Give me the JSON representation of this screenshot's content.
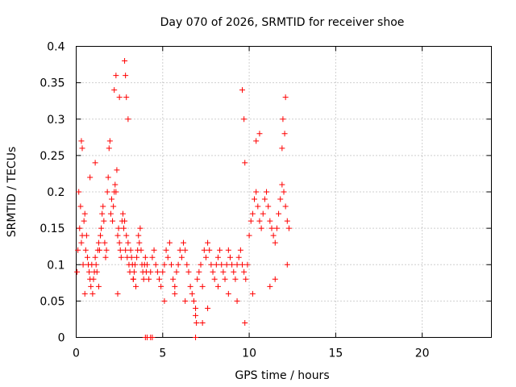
{
  "chart_data": {
    "type": "scatter",
    "title": "Day 070 of 2026, SRMTID for receiver shoe",
    "xlabel": "GPS time / hours",
    "ylabel": "SRMTID / TECUs",
    "xlim": [
      0,
      24
    ],
    "ylim": [
      0,
      0.4
    ],
    "xticks": [
      0,
      5,
      10,
      15,
      20
    ],
    "xtick_labels": [
      "0",
      "5",
      "10",
      "15",
      "20"
    ],
    "yticks": [
      0,
      0.05,
      0.1,
      0.15,
      0.2,
      0.25,
      0.3,
      0.35,
      0.4
    ],
    "ytick_labels": [
      "0",
      "0.05",
      "0.1",
      "0.15",
      "0.2",
      "0.25",
      "0.3",
      "0.35",
      "0.4"
    ],
    "grid": true,
    "marker": "plus",
    "color": "#ff0000",
    "series": [
      {
        "name": "SRMTID",
        "x": [
          0.05,
          0.1,
          0.15,
          0.2,
          0.25,
          0.3,
          0.35,
          0.4,
          0.45,
          0.5,
          0.55,
          0.6,
          0.65,
          0.7,
          0.75,
          0.8,
          0.85,
          0.9,
          0.95,
          1.0,
          1.05,
          1.1,
          1.15,
          1.2,
          1.25,
          1.3,
          1.35,
          1.4,
          1.45,
          1.5,
          1.55,
          1.6,
          1.65,
          1.7,
          1.75,
          1.8,
          1.85,
          1.9,
          1.95,
          2.0,
          2.05,
          2.1,
          2.15,
          2.2,
          2.25,
          2.3,
          2.35,
          2.4,
          2.45,
          2.5,
          2.55,
          2.6,
          2.65,
          2.7,
          2.75,
          2.8,
          2.85,
          2.9,
          2.95,
          3.0,
          3.05,
          3.1,
          3.15,
          3.2,
          3.25,
          3.3,
          3.35,
          3.4,
          3.45,
          3.5,
          3.55,
          3.6,
          3.65,
          3.7,
          3.75,
          3.8,
          3.85,
          3.9,
          3.95,
          4.0,
          4.05,
          4.1,
          4.2,
          4.3,
          4.4,
          4.5,
          4.6,
          4.7,
          4.8,
          4.9,
          5.0,
          5.1,
          5.2,
          5.3,
          5.4,
          5.5,
          5.6,
          5.7,
          5.8,
          5.9,
          6.0,
          6.1,
          6.2,
          6.3,
          6.4,
          6.5,
          6.6,
          6.7,
          6.8,
          6.9,
          7.0,
          7.1,
          7.2,
          7.3,
          7.4,
          7.5,
          7.6,
          7.7,
          7.8,
          7.9,
          8.0,
          8.1,
          8.2,
          8.3,
          8.4,
          8.5,
          8.6,
          8.7,
          8.8,
          8.9,
          9.0,
          9.1,
          9.2,
          9.3,
          9.4,
          9.5,
          9.6,
          9.7,
          9.8,
          9.9,
          10.0,
          10.1,
          10.2,
          10.3,
          10.4,
          10.5,
          10.6,
          10.7,
          10.8,
          10.9,
          11.0,
          11.1,
          11.2,
          11.3,
          11.4,
          11.5,
          11.6,
          11.7,
          11.8,
          11.9,
          12.0,
          12.1,
          12.2,
          12.3,
          0.3,
          0.35,
          0.8,
          1.1,
          2.2,
          2.3,
          2.5,
          2.8,
          2.85,
          2.9,
          3.0,
          9.6,
          9.7,
          9.75,
          10.4,
          10.6,
          11.9,
          11.95,
          12.05,
          12.1,
          4.0,
          4.1,
          4.3,
          4.4,
          6.9,
          6.95,
          6.9,
          7.3,
          9.75,
          0.5,
          1.3,
          2.4,
          3.3,
          5.1,
          5.7,
          6.3,
          7.6,
          8.2,
          8.8,
          9.3,
          10.2,
          11.2,
          11.5,
          12.2
        ],
        "y": [
          0.09,
          0.12,
          0.2,
          0.15,
          0.18,
          0.13,
          0.14,
          0.1,
          0.16,
          0.17,
          0.12,
          0.14,
          0.11,
          0.1,
          0.09,
          0.08,
          0.07,
          0.1,
          0.06,
          0.08,
          0.09,
          0.11,
          0.1,
          0.09,
          0.12,
          0.13,
          0.12,
          0.14,
          0.15,
          0.17,
          0.18,
          0.16,
          0.13,
          0.11,
          0.12,
          0.2,
          0.22,
          0.26,
          0.27,
          0.17,
          0.19,
          0.16,
          0.18,
          0.2,
          0.21,
          0.2,
          0.23,
          0.14,
          0.15,
          0.13,
          0.12,
          0.11,
          0.16,
          0.17,
          0.15,
          0.16,
          0.12,
          0.14,
          0.11,
          0.13,
          0.1,
          0.09,
          0.12,
          0.11,
          0.1,
          0.08,
          0.09,
          0.1,
          0.07,
          0.11,
          0.12,
          0.14,
          0.13,
          0.15,
          0.12,
          0.1,
          0.09,
          0.08,
          0.1,
          0.11,
          0.09,
          0.1,
          0.08,
          0.09,
          0.11,
          0.12,
          0.1,
          0.09,
          0.08,
          0.07,
          0.09,
          0.1,
          0.12,
          0.11,
          0.13,
          0.1,
          0.08,
          0.07,
          0.09,
          0.1,
          0.12,
          0.11,
          0.13,
          0.12,
          0.1,
          0.09,
          0.07,
          0.06,
          0.05,
          0.04,
          0.08,
          0.09,
          0.1,
          0.07,
          0.12,
          0.11,
          0.13,
          0.12,
          0.1,
          0.09,
          0.08,
          0.1,
          0.11,
          0.12,
          0.1,
          0.09,
          0.08,
          0.1,
          0.12,
          0.11,
          0.1,
          0.09,
          0.08,
          0.1,
          0.11,
          0.12,
          0.1,
          0.09,
          0.08,
          0.1,
          0.14,
          0.16,
          0.17,
          0.19,
          0.2,
          0.18,
          0.16,
          0.15,
          0.17,
          0.19,
          0.2,
          0.18,
          0.16,
          0.15,
          0.14,
          0.13,
          0.15,
          0.17,
          0.19,
          0.21,
          0.2,
          0.18,
          0.16,
          0.15,
          0.27,
          0.26,
          0.22,
          0.24,
          0.34,
          0.36,
          0.33,
          0.38,
          0.36,
          0.33,
          0.3,
          0.34,
          0.3,
          0.24,
          0.27,
          0.28,
          0.26,
          0.3,
          0.28,
          0.33,
          0.0,
          0.0,
          0.0,
          0.0,
          0.0,
          0.02,
          0.03,
          0.02,
          0.02,
          0.06,
          0.07,
          0.06,
          0.08,
          0.05,
          0.06,
          0.05,
          0.04,
          0.07,
          0.06,
          0.05,
          0.06,
          0.07,
          0.08,
          0.1
        ]
      }
    ]
  }
}
